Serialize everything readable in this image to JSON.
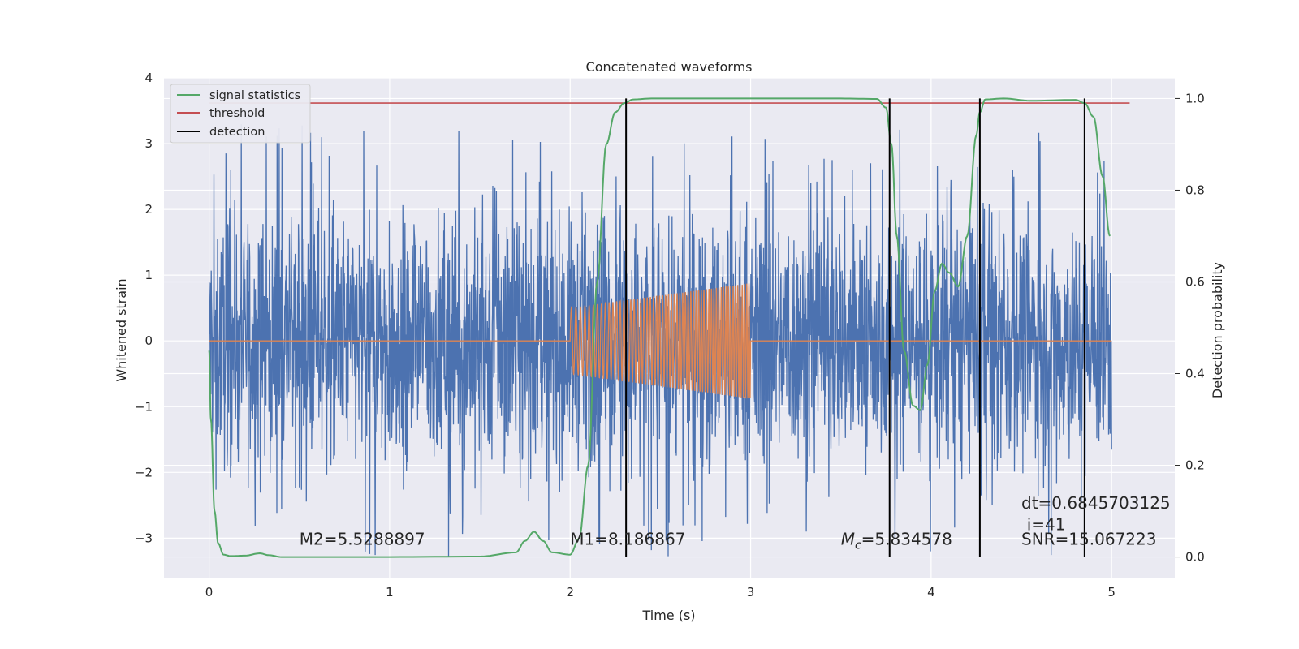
{
  "chart_data": {
    "type": "line",
    "title": "Concatenated waveforms",
    "xlabel": "Time (s)",
    "ylabel": "Whitened strain",
    "ylabel_right": "Detection probability",
    "xlim": [
      -0.25,
      5.35
    ],
    "ylim": [
      -3.6,
      4.0
    ],
    "ylim_right": [
      -0.045,
      1.045
    ],
    "x_ticks": [
      0,
      1,
      2,
      3,
      4,
      5
    ],
    "y_ticks": [
      -3,
      -2,
      -1,
      0,
      1,
      2,
      3,
      4
    ],
    "y_ticks_right": [
      0.0,
      0.2,
      0.4,
      0.6,
      0.8,
      1.0
    ],
    "x_tick_labels": [
      "0",
      "1",
      "2",
      "3",
      "4",
      "5"
    ],
    "y_tick_labels": [
      "−3",
      "−2",
      "−1",
      "0",
      "1",
      "2",
      "3",
      "4"
    ],
    "y_tick_labels_right": [
      "0.0",
      "0.2",
      "0.4",
      "0.6",
      "0.8",
      "1.0"
    ],
    "grid": true,
    "legend_position": "top-left",
    "colors": {
      "background": "#eaeaf2",
      "grid": "#ffffff",
      "noise": "#4c72b0",
      "signal": "#dd8452",
      "statistics": "#55a868",
      "threshold": "#c44e52",
      "detection": "#000000"
    },
    "legend": [
      {
        "label": "signal statistics",
        "color": "#55a868"
      },
      {
        "label": "threshold",
        "color": "#c44e52"
      },
      {
        "label": "detection",
        "color": "#000000"
      }
    ],
    "noise": {
      "x_range": [
        0.0,
        5.0
      ],
      "amplitude": 0.9,
      "spike_max": 3.3
    },
    "signal": {
      "start": 2.0,
      "end": 3.0,
      "amp_start": 0.5,
      "amp_end": 0.88
    },
    "threshold": {
      "value": 0.99,
      "x_range": [
        0.0,
        5.1
      ]
    },
    "statistics": {
      "x": [
        0.0,
        0.01,
        0.03,
        0.05,
        0.08,
        0.12,
        0.2,
        0.28,
        0.33,
        0.4,
        0.6,
        1.0,
        1.5,
        1.7,
        1.75,
        1.8,
        1.85,
        1.9,
        2.0,
        2.05,
        2.1,
        2.15,
        2.2,
        2.25,
        2.3,
        2.35,
        2.45,
        2.8,
        3.5,
        3.7,
        3.75,
        3.78,
        3.81,
        3.85,
        3.9,
        3.94,
        3.98,
        4.02,
        4.06,
        4.1,
        4.15,
        4.2,
        4.25,
        4.27,
        4.3,
        4.4,
        4.55,
        4.8,
        4.85,
        4.9,
        4.95,
        4.99
      ],
      "y": [
        0.45,
        0.3,
        0.1,
        0.03,
        0.005,
        0.002,
        0.003,
        0.008,
        0.004,
        0.0,
        0.0,
        0.0,
        0.001,
        0.01,
        0.035,
        0.055,
        0.035,
        0.01,
        0.005,
        0.04,
        0.2,
        0.6,
        0.9,
        0.97,
        0.99,
        0.998,
        1.0,
        1.0,
        1.0,
        0.999,
        0.98,
        0.9,
        0.7,
        0.45,
        0.33,
        0.32,
        0.42,
        0.58,
        0.64,
        0.62,
        0.59,
        0.7,
        0.92,
        0.97,
        0.998,
        1.0,
        0.995,
        0.997,
        0.99,
        0.96,
        0.83,
        0.7
      ]
    },
    "detections": [
      {
        "x": 2.31,
        "ymin": 0.0,
        "ymax": 1.0
      },
      {
        "x": 3.77,
        "ymin": 0.0,
        "ymax": 1.0
      },
      {
        "x": 4.27,
        "ymin": 0.0,
        "ymax": 1.0
      },
      {
        "x": 4.85,
        "ymin": 0.0,
        "ymax": 1.0
      }
    ],
    "annotations": [
      {
        "id": "m2",
        "text": "M2=5.5288897",
        "x": 0.5,
        "y": -3.1
      },
      {
        "id": "m1",
        "text": "M1=8.186867",
        "x": 2.0,
        "y": -3.1
      },
      {
        "id": "mc",
        "text": "M_c=5.834578",
        "x": 3.5,
        "y": -3.1
      },
      {
        "id": "snr",
        "text": "SNR=15.067223",
        "x": 4.5,
        "y": -3.1
      },
      {
        "id": "i",
        "text": "i=41",
        "x": 4.53,
        "y": -2.88
      },
      {
        "id": "dt",
        "text": "dt=0.6845703125",
        "x": 4.5,
        "y": -2.55
      }
    ]
  }
}
